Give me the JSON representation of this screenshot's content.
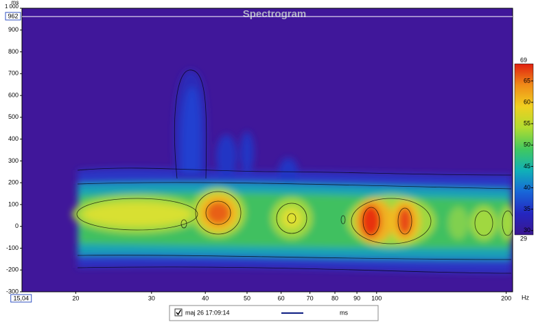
{
  "chart_data": {
    "type": "spectrogram",
    "title": "Spectrogram",
    "y_label": "ms",
    "x_label": "Hz",
    "xlim": [
      15,
      207
    ],
    "xscale": "log",
    "xticks": [
      20,
      30,
      40,
      50,
      60,
      70,
      80,
      90,
      100,
      200
    ],
    "ylim": [
      -300,
      1000
    ],
    "yticks": [
      -300,
      -200,
      -100,
      0,
      100,
      200,
      300,
      400,
      500,
      600,
      700,
      800,
      900,
      {
        "value": 1000,
        "label": "1 000"
      }
    ],
    "grid": false,
    "background": "#40179a",
    "cursor": {
      "y": 962,
      "x": {
        "value": 15.04,
        "label": "15,04"
      }
    },
    "zlim": [
      29,
      69
    ],
    "zticks": [
      30,
      35,
      40,
      45,
      50,
      55,
      60,
      65
    ],
    "colormap": [
      "#3a1690",
      "#2426c0",
      "#1866d8",
      "#10b0b8",
      "#40c860",
      "#b0dc30",
      "#f0d020",
      "#f08c18",
      "#e02010"
    ],
    "series": [
      {
        "name": "maj 26 17:09:14",
        "color": "#0a1a80"
      }
    ],
    "legend_unit": "ms"
  }
}
